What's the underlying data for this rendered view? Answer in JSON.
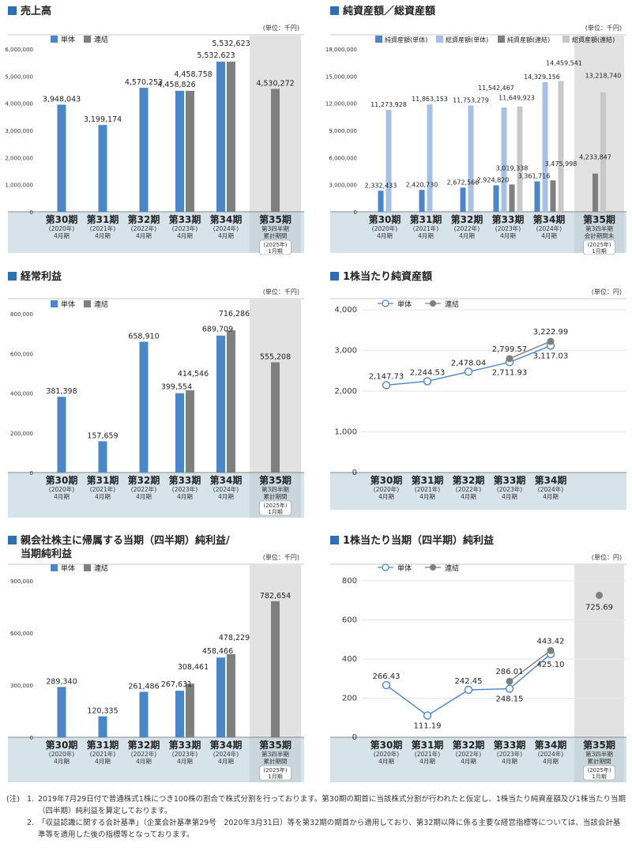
{
  "unit_thousand": "(単位：千円)",
  "unit_yen": "(単位：円)",
  "legend": {
    "single": "単体",
    "consolidated": "連結",
    "net_assets_single": "純資産額(単体)",
    "total_assets_single": "総資産額(単体)",
    "net_assets_consolidated": "純資産額(連結)",
    "total_assets_consolidated": "総資産額(連結)"
  },
  "periods": [
    {
      "label": "第30期",
      "sub1": "(2020年)",
      "sub2": "4月期"
    },
    {
      "label": "第31期",
      "sub1": "(2021年)",
      "sub2": "4月期"
    },
    {
      "label": "第32期",
      "sub1": "(2022年)",
      "sub2": "4月期"
    },
    {
      "label": "第33期",
      "sub1": "(2023年)",
      "sub2": "4月期"
    },
    {
      "label": "第34期",
      "sub1": "(2024年)",
      "sub2": "4月期"
    }
  ],
  "period35_a": {
    "label": "第35期",
    "sub1": "第3四半期",
    "sub2": "累計期間",
    "sub3": "(2025年)",
    "sub4": "1月期"
  },
  "period35_b": {
    "label": "第35期",
    "sub1": "第3四半期",
    "sub2": "会計期間末",
    "sub3": "(2025年)",
    "sub4": "1月期"
  },
  "colors": {
    "single": "#4a86c8",
    "consolidated": "#7f7f7f",
    "total_single": "#a7c0e6",
    "total_consolidated": "#c8c8c8",
    "band": "#d6e3ea",
    "shade": "#e2e2e2",
    "title_square": "#2f6db5"
  },
  "chart_data": [
    {
      "id": "sales",
      "type": "bar",
      "title": "売上高",
      "ylim": [
        0,
        6000000
      ],
      "yticks": [
        "0",
        "1,000,000",
        "2,000,000",
        "3,000,000",
        "4,000,000",
        "5,000,000",
        "6,000,000"
      ],
      "categories": [
        "第30期",
        "第31期",
        "第32期",
        "第33期",
        "第34期",
        "第35期"
      ],
      "series": [
        {
          "name": "単体",
          "values": [
            3948043,
            3199174,
            4570253,
            4458826,
            5532623,
            null
          ],
          "labels": [
            "3,948,043",
            "3,199,174",
            "4,570,253",
            "4,458,826",
            "5,532,623",
            ""
          ]
        },
        {
          "name": "連結",
          "values": [
            null,
            null,
            null,
            4458758,
            5532623,
            4530272
          ],
          "labels": [
            "",
            "",
            "",
            "4,458,758",
            "5,532,623",
            "4,530,272"
          ]
        }
      ]
    },
    {
      "id": "assets",
      "type": "bar",
      "title": "純資産額／総資産額",
      "ylim": [
        0,
        18000000
      ],
      "yticks": [
        "0",
        "3,000,000",
        "6,000,000",
        "9,000,000",
        "12,000,000",
        "15,000,000",
        "18,000,000"
      ],
      "categories": [
        "第30期",
        "第31期",
        "第32期",
        "第33期",
        "第34期",
        "第35期"
      ],
      "series": [
        {
          "name": "純資産額(単体)",
          "values": [
            2332433,
            2420730,
            2672566,
            2924820,
            3361716,
            null
          ],
          "labels": [
            "2,332,433",
            "2,420,730",
            "2,672,566",
            "2,924,820",
            "3,361,716",
            ""
          ]
        },
        {
          "name": "総資産額(単体)",
          "values": [
            11273928,
            11863153,
            11753279,
            11542467,
            14329156,
            null
          ],
          "labels": [
            "11,273,928",
            "11,863,153",
            "11,753,279",
            "11,542,467",
            "14,329,156",
            ""
          ]
        },
        {
          "name": "純資産額(連結)",
          "values": [
            null,
            null,
            null,
            3019338,
            3475998,
            4233847
          ],
          "labels": [
            "",
            "",
            "",
            "3,019,338",
            "3,475,998",
            "4,233,847"
          ]
        },
        {
          "name": "総資産額(連結)",
          "values": [
            null,
            null,
            null,
            11649923,
            14459541,
            13218740
          ],
          "labels": [
            "",
            "",
            "",
            "11,649,923",
            "14,459,541",
            "13,218,740"
          ]
        }
      ]
    },
    {
      "id": "ordinary",
      "type": "bar",
      "title": "経常利益",
      "ylim": [
        0,
        800000
      ],
      "yticks": [
        "0",
        "200,000",
        "400,000",
        "600,000",
        "800,000"
      ],
      "categories": [
        "第30期",
        "第31期",
        "第32期",
        "第33期",
        "第34期",
        "第35期"
      ],
      "series": [
        {
          "name": "単体",
          "values": [
            381398,
            157659,
            658910,
            399554,
            689709,
            null
          ],
          "labels": [
            "381,398",
            "157,659",
            "658,910",
            "399,554",
            "689,709",
            ""
          ]
        },
        {
          "name": "連結",
          "values": [
            null,
            null,
            null,
            414546,
            716286,
            555208
          ],
          "labels": [
            "",
            "",
            "",
            "414,546",
            "716,286",
            "555,208"
          ]
        }
      ]
    },
    {
      "id": "bps",
      "type": "line",
      "title": "1株当たり純資産額",
      "ylim": [
        0,
        4000
      ],
      "yticks": [
        "0",
        "1,000",
        "2,000",
        "3,000",
        "4,000"
      ],
      "categories": [
        "第30期",
        "第31期",
        "第32期",
        "第33期",
        "第34期"
      ],
      "series": [
        {
          "name": "単体",
          "values": [
            2147.73,
            2244.53,
            2478.04,
            2711.93,
            3117.03
          ],
          "labels": [
            "2,147.73",
            "2,244.53",
            "2,478.04",
            "2,711.93",
            "3,117.03"
          ]
        },
        {
          "name": "連結",
          "values": [
            null,
            null,
            null,
            2799.57,
            3222.99
          ],
          "labels": [
            "",
            "",
            "",
            "2,799.57",
            "3,222.99"
          ]
        }
      ]
    },
    {
      "id": "netincome",
      "type": "bar",
      "title": "親会社株主に帰属する当期（四半期）純利益/",
      "title2": "当期純利益",
      "ylim": [
        0,
        900000
      ],
      "yticks": [
        "0",
        "300,000",
        "600,000",
        "900,000"
      ],
      "categories": [
        "第30期",
        "第31期",
        "第32期",
        "第33期",
        "第34期",
        "第35期"
      ],
      "series": [
        {
          "name": "単体",
          "values": [
            289340,
            120335,
            261486,
            267631,
            458466,
            null
          ],
          "labels": [
            "289,340",
            "120,335",
            "261,486",
            "267,631",
            "458,466",
            ""
          ]
        },
        {
          "name": "連結",
          "values": [
            null,
            null,
            null,
            308461,
            478229,
            782654
          ],
          "labels": [
            "",
            "",
            "",
            "308,461",
            "478,229",
            "782,654"
          ]
        }
      ]
    },
    {
      "id": "eps",
      "type": "line",
      "title": "1株当たり当期（四半期）純利益",
      "ylim": [
        0,
        800
      ],
      "yticks": [
        "0",
        "200",
        "400",
        "600",
        "800"
      ],
      "categories": [
        "第30期",
        "第31期",
        "第32期",
        "第33期",
        "第34期",
        "第35期"
      ],
      "series": [
        {
          "name": "単体",
          "values": [
            266.43,
            111.19,
            242.45,
            248.15,
            425.1,
            null
          ],
          "labels": [
            "266.43",
            "111.19",
            "242.45",
            "248.15",
            "425.10",
            ""
          ]
        },
        {
          "name": "連結",
          "values": [
            null,
            null,
            null,
            286.01,
            443.42,
            725.69
          ],
          "labels": [
            "",
            "",
            "",
            "286.01",
            "443.42",
            "725.69"
          ]
        }
      ]
    }
  ],
  "notes": {
    "prefix": "(注)",
    "items": [
      {
        "num": "1.",
        "text": "2019年7月29日付で普通株式1株につき100株の割合で株式分割を行っております。第30期の期首に当該株式分割が行われたと仮定し、1株当たり純資産額及び1株当たり当期（四半期）純利益を算定しております。"
      },
      {
        "num": "2.",
        "text": "「収益認識に関する会計基準」（企業会計基準第29号　2020年3月31日）等を第32期の期首から適用しており、第32期以降に係る主要な経営指標等については、当該会計基準等を適用した後の指標等となっております。"
      }
    ]
  }
}
